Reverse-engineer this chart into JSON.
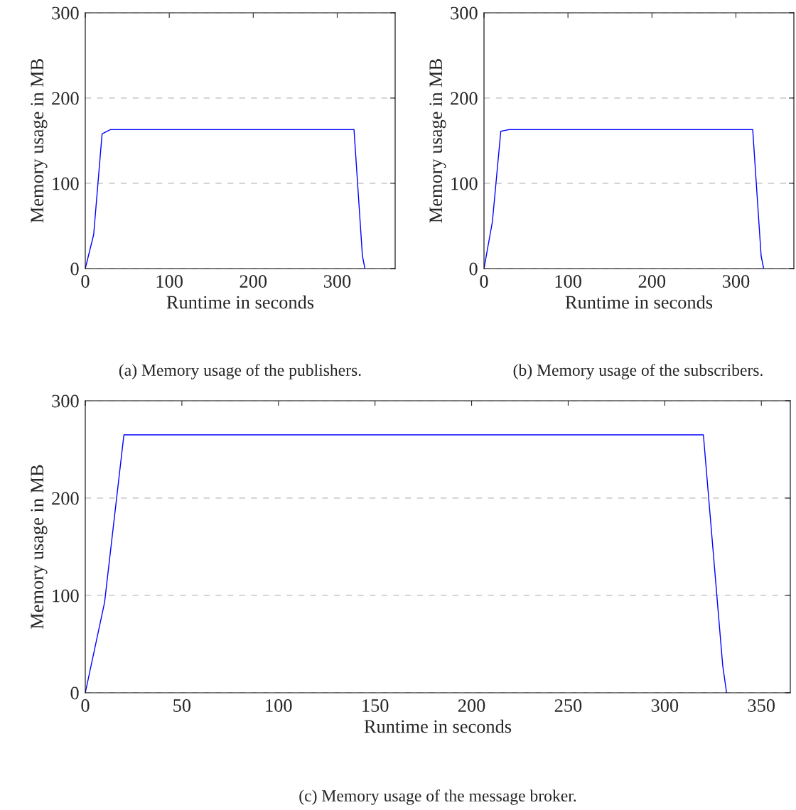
{
  "chart_data": [
    {
      "type": "line",
      "xlabel": "Runtime in seconds",
      "ylabel": "Memory usage in MB",
      "x": [
        0,
        10,
        20,
        30,
        320,
        330,
        333
      ],
      "series": [
        {
          "color": "#0000ff",
          "values": [
            0,
            40,
            158,
            163,
            163,
            15,
            0
          ]
        }
      ],
      "xlim": [
        0,
        369
      ],
      "ylim": [
        0,
        300
      ],
      "xticks": [
        0,
        100,
        200,
        300
      ],
      "yticks": [
        0,
        100,
        200,
        300
      ],
      "grid": "y",
      "annotations": [
        "(a) Memory usage of the publishers."
      ]
    },
    {
      "type": "line",
      "xlabel": "Runtime in seconds",
      "ylabel": "Memory usage in MB",
      "x": [
        0,
        10,
        20,
        30,
        320,
        330,
        333
      ],
      "series": [
        {
          "color": "#0000ff",
          "values": [
            0,
            55,
            161,
            163,
            163,
            15,
            0
          ]
        }
      ],
      "xlim": [
        0,
        369
      ],
      "ylim": [
        0,
        300
      ],
      "xticks": [
        0,
        100,
        200,
        300
      ],
      "yticks": [
        0,
        100,
        200,
        300
      ],
      "grid": "y",
      "annotations": [
        "(b) Memory usage of the subscribers."
      ]
    },
    {
      "type": "line",
      "xlabel": "Runtime in seconds",
      "ylabel": "Memory usage in MB",
      "x": [
        0,
        10,
        20,
        320,
        330,
        332
      ],
      "series": [
        {
          "color": "#0000ff",
          "values": [
            0,
            93,
            265,
            265,
            28,
            0
          ]
        }
      ],
      "xlim": [
        0,
        365
      ],
      "ylim": [
        0,
        300
      ],
      "xticks": [
        0,
        50,
        100,
        150,
        200,
        250,
        300,
        350
      ],
      "yticks": [
        0,
        100,
        200,
        300
      ],
      "grid": "y",
      "annotations": [
        "(c) Memory usage of the message broker."
      ]
    }
  ]
}
